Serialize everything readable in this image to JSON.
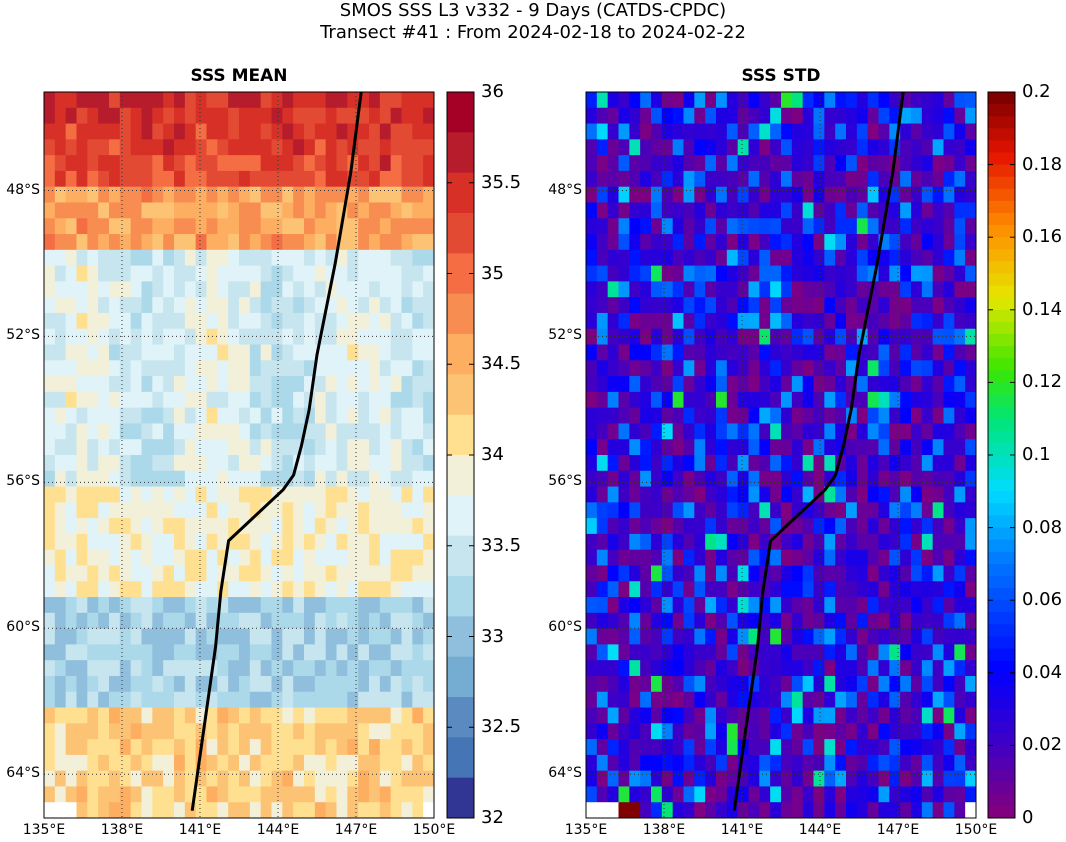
{
  "title": {
    "line1": "SMOS SSS L3 v332 - 9 Days (CATDS-CPDC)",
    "line2": "Transect #41 : From 2024-02-18 to 2024-02-22"
  },
  "panels": [
    {
      "title": "SSS MEAN",
      "colormap": "RdYlBu_r",
      "colorbar": {
        "min": 32,
        "max": 36,
        "ticks": [
          "36",
          "35.5",
          "35",
          "34.5",
          "34",
          "33.5",
          "33",
          "32.5",
          "32"
        ]
      }
    },
    {
      "title": "SSS STD",
      "colormap": "jet",
      "colorbar": {
        "min": 0,
        "max": 0.2,
        "ticks": [
          "0.2",
          "0.18",
          "0.16",
          "0.14",
          "0.12",
          "0.1",
          "0.08",
          "0.06",
          "0.04",
          "0.02",
          "0"
        ]
      }
    }
  ],
  "axes": {
    "lon_ticks": [
      "135°E",
      "138°E",
      "141°E",
      "144°E",
      "147°E",
      "150°E"
    ],
    "lat_ticks": [
      "48°S",
      "52°S",
      "56°S",
      "60°S",
      "64°S"
    ],
    "lon_range": [
      135,
      150
    ],
    "lat_range": [
      -65.2,
      -45.3
    ]
  },
  "transect": {
    "points": [
      [
        147.2,
        -45.3
      ],
      [
        146.8,
        -47.5
      ],
      [
        146.2,
        -50.0
      ],
      [
        145.5,
        -52.5
      ],
      [
        145.2,
        -54.0
      ],
      [
        144.9,
        -55.0
      ],
      [
        144.6,
        -55.8
      ],
      [
        144.2,
        -56.2
      ],
      [
        143.0,
        -57.0
      ],
      [
        142.1,
        -57.6
      ],
      [
        141.8,
        -59.0
      ],
      [
        141.6,
        -60.5
      ],
      [
        141.3,
        -62.0
      ],
      [
        141.0,
        -63.5
      ],
      [
        140.7,
        -65.0
      ]
    ]
  }
}
